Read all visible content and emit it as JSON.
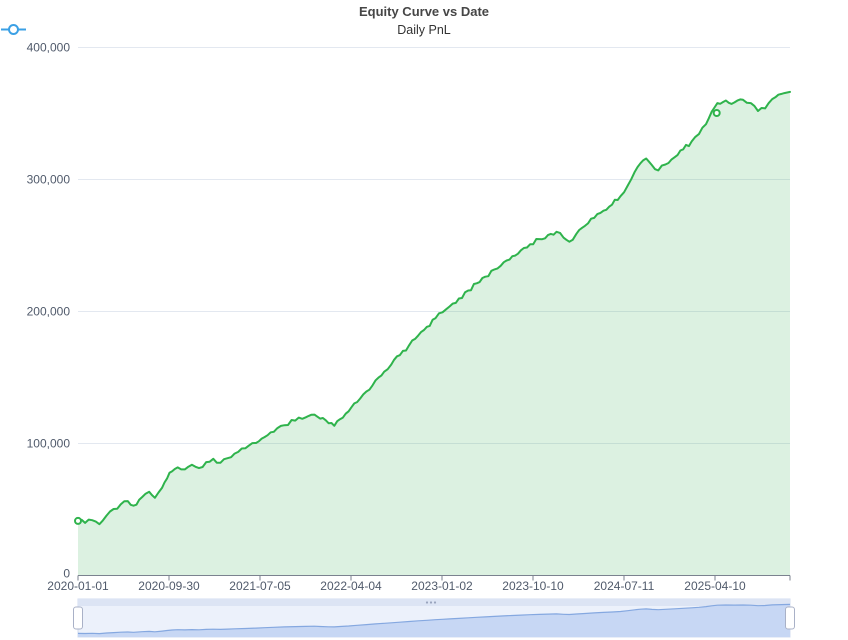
{
  "title": "Equity Curve vs Date",
  "legend": {
    "label": "Daily PnL",
    "icon_color": "#3BA0E5"
  },
  "colors": {
    "line": "#2FB34C",
    "area_fill": "rgba(63,179,86,0.18)",
    "gridline": "#E3E8F0",
    "axis": "#7B828F",
    "label_text": "#505A6B",
    "slider_track": "#ECF1FB",
    "slider_border": "#D3DDF0",
    "slider_fill": "#C7D7F4",
    "slider_line": "#85A8E0",
    "slider_handle_border": "#A9B1C7",
    "slider_move_strip": "#DCE4F4"
  },
  "chart_data": {
    "type": "area",
    "title": "Equity Curve vs Date",
    "legend_entries": [
      "Daily PnL"
    ],
    "legend_position": "top",
    "grid": true,
    "ylim": [
      0,
      400000
    ],
    "y_tick_labels": [
      "400,000",
      "300,000",
      "200,000",
      "100,000",
      "0"
    ],
    "x_tick_labels": [
      "2020-01-01",
      "2020-09-30",
      "2021-07-05",
      "2022-04-04",
      "2023-01-02",
      "2023-10-10",
      "2024-07-11",
      "2025-04-10"
    ],
    "series": [
      {
        "name": "Daily PnL",
        "keypoints": [
          [
            0.0,
            41000
          ],
          [
            0.01,
            39500
          ],
          [
            0.02,
            41500
          ],
          [
            0.03,
            38500
          ],
          [
            0.04,
            45000
          ],
          [
            0.05,
            50000
          ],
          [
            0.06,
            53500
          ],
          [
            0.07,
            56000
          ],
          [
            0.078,
            52500
          ],
          [
            0.09,
            59000
          ],
          [
            0.1,
            63000
          ],
          [
            0.108,
            58500
          ],
          [
            0.118,
            66000
          ],
          [
            0.125,
            73000
          ],
          [
            0.132,
            78500
          ],
          [
            0.14,
            81500
          ],
          [
            0.15,
            80000
          ],
          [
            0.16,
            83500
          ],
          [
            0.17,
            81000
          ],
          [
            0.18,
            85500
          ],
          [
            0.19,
            88000
          ],
          [
            0.2,
            85000
          ],
          [
            0.21,
            88500
          ],
          [
            0.22,
            92000
          ],
          [
            0.235,
            96000
          ],
          [
            0.25,
            100000
          ],
          [
            0.262,
            104500
          ],
          [
            0.275,
            108500
          ],
          [
            0.29,
            113500
          ],
          [
            0.305,
            117000
          ],
          [
            0.32,
            119500
          ],
          [
            0.332,
            121500
          ],
          [
            0.34,
            118500
          ],
          [
            0.352,
            115000
          ],
          [
            0.36,
            113000
          ],
          [
            0.368,
            118000
          ],
          [
            0.38,
            124000
          ],
          [
            0.392,
            131000
          ],
          [
            0.405,
            139000
          ],
          [
            0.418,
            147500
          ],
          [
            0.43,
            154000
          ],
          [
            0.44,
            159500
          ],
          [
            0.452,
            166500
          ],
          [
            0.465,
            174000
          ],
          [
            0.478,
            181500
          ],
          [
            0.49,
            188000
          ],
          [
            0.502,
            194500
          ],
          [
            0.512,
            199000
          ],
          [
            0.522,
            203500
          ],
          [
            0.535,
            209500
          ],
          [
            0.548,
            215500
          ],
          [
            0.56,
            221000
          ],
          [
            0.572,
            226000
          ],
          [
            0.585,
            231500
          ],
          [
            0.598,
            237000
          ],
          [
            0.61,
            241500
          ],
          [
            0.622,
            246000
          ],
          [
            0.635,
            250500
          ],
          [
            0.648,
            254500
          ],
          [
            0.66,
            257500
          ],
          [
            0.672,
            260000
          ],
          [
            0.682,
            255500
          ],
          [
            0.69,
            252500
          ],
          [
            0.7,
            258500
          ],
          [
            0.712,
            264500
          ],
          [
            0.725,
            270500
          ],
          [
            0.738,
            276000
          ],
          [
            0.75,
            280500
          ],
          [
            0.762,
            287000
          ],
          [
            0.772,
            295000
          ],
          [
            0.782,
            305500
          ],
          [
            0.79,
            312000
          ],
          [
            0.798,
            315500
          ],
          [
            0.806,
            310500
          ],
          [
            0.815,
            306500
          ],
          [
            0.825,
            311000
          ],
          [
            0.838,
            316500
          ],
          [
            0.85,
            322500
          ],
          [
            0.862,
            328500
          ],
          [
            0.872,
            334000
          ],
          [
            0.882,
            341500
          ],
          [
            0.89,
            351000
          ],
          [
            0.898,
            357500
          ],
          [
            0.91,
            359500
          ],
          [
            0.922,
            358000
          ],
          [
            0.934,
            360000
          ],
          [
            0.945,
            357500
          ],
          [
            0.955,
            351500
          ],
          [
            0.965,
            353500
          ],
          [
            0.975,
            360500
          ],
          [
            0.988,
            364500
          ],
          [
            1.0,
            366000
          ]
        ],
        "start_value": 41000,
        "end_value": 366000
      }
    ],
    "markers": [
      {
        "f": 0.0,
        "value": 41000
      },
      {
        "f": 0.897,
        "value": 350000
      }
    ]
  }
}
